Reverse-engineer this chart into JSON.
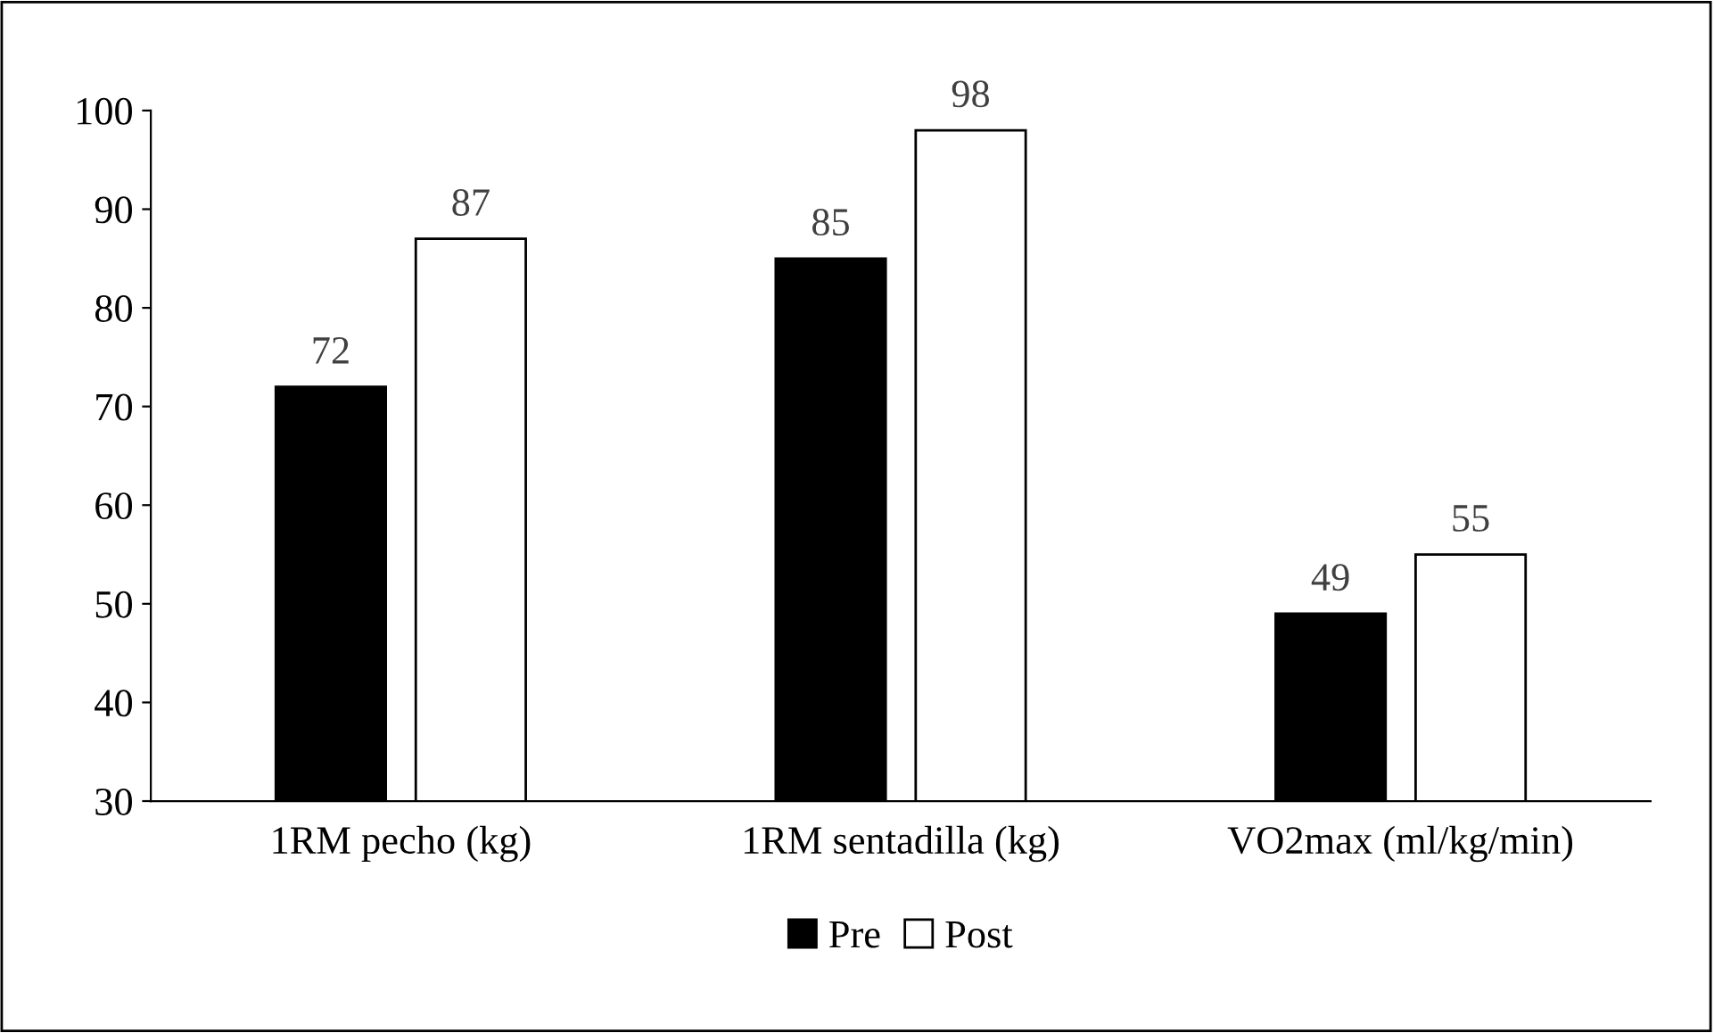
{
  "chart_data": {
    "type": "bar",
    "categories": [
      "1RM pecho (kg)",
      "1RM sentadilla (kg)",
      "VO2max (ml/kg/min)"
    ],
    "series": [
      {
        "name": "Pre",
        "color": "#000000",
        "values": [
          72,
          85,
          49
        ]
      },
      {
        "name": "Post",
        "color": "#ffffff",
        "values": [
          87,
          98,
          55
        ]
      }
    ],
    "ylim": [
      30,
      100
    ],
    "yticks": [
      30,
      40,
      50,
      60,
      70,
      80,
      90,
      100
    ],
    "data_labels": true,
    "grid": false,
    "legend": "bottom"
  }
}
